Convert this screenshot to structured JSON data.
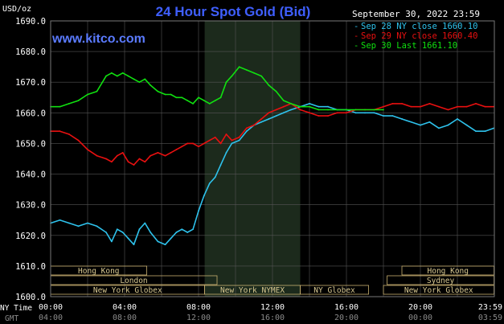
{
  "header": {
    "unit_label": "USD/oz",
    "title": "24 Hour Spot Gold (Bid)",
    "date": "September 30, 2022 23:59",
    "watermark": "www.kitco.com"
  },
  "colors": {
    "background": "#000000",
    "grid": "#555555",
    "title": "#3f5fff",
    "watermark": "#5b7bff",
    "sep28": "#2ec2ec",
    "sep29": "#e81010",
    "sep30": "#10e010",
    "session_box": "#c8b070",
    "session_text": "#d8c890",
    "axis_text": "#ffffff",
    "gmt_text": "#8a8a8a",
    "ny_band": "#1c2a1c"
  },
  "sessions": {
    "row1": [
      "Hong Kong",
      "Hong Kong"
    ],
    "row2": [
      "London",
      "Sydney"
    ],
    "row3": [
      "New York Globex",
      "New York NYMEX",
      "NY Globex",
      "New York Globex"
    ]
  },
  "footer": {
    "ny_label": "NY Time",
    "gmt_label": "GMT"
  },
  "chart_data": {
    "type": "line",
    "title": "24 Hour Spot Gold (Bid)",
    "ylabel": "USD/oz",
    "ylim": [
      1600,
      1690
    ],
    "yticks": [
      "1600.0",
      "1610.0",
      "1620.0",
      "1630.0",
      "1640.0",
      "1650.0",
      "1660.0",
      "1670.0",
      "1680.0",
      "1690.0"
    ],
    "xlim": [
      0,
      24
    ],
    "xticks_ny": [
      "00:00",
      "04:00",
      "08:00",
      "12:00",
      "16:00",
      "20:00",
      "23:59"
    ],
    "xticks_gmt": [
      "04:00",
      "08:00",
      "12:00",
      "16:00",
      "20:00",
      "00:00",
      "03:59"
    ],
    "grid": true,
    "legend_position": "top-right",
    "series": [
      {
        "name": "Sep 28 NY close 1660.10",
        "key": "sep28",
        "x": [
          0,
          0.5,
          1,
          1.5,
          2,
          2.5,
          3,
          3.3,
          3.6,
          3.9,
          4.2,
          4.5,
          4.8,
          5.1,
          5.4,
          5.8,
          6.2,
          6.5,
          6.8,
          7.1,
          7.4,
          7.7,
          8.0,
          8.3,
          8.6,
          8.9,
          9.2,
          9.5,
          9.8,
          10.2,
          10.6,
          11.0,
          11.4,
          11.8,
          12.2,
          12.6,
          13.0,
          13.5,
          14.0,
          14.5,
          15.0,
          15.5,
          16.0,
          16.5,
          17.0,
          17.5,
          18.0,
          18.5,
          19.0,
          19.5,
          20.0,
          20.5,
          21.0,
          21.5,
          22.0,
          22.5,
          23.0,
          23.5,
          23.98
        ],
        "y": [
          1624,
          1625,
          1624,
          1623,
          1624,
          1623,
          1621,
          1618,
          1622,
          1621,
          1619,
          1617,
          1622,
          1624,
          1621,
          1618,
          1617,
          1619,
          1621,
          1622,
          1621,
          1622,
          1628,
          1633,
          1637,
          1639,
          1643,
          1647,
          1650,
          1651,
          1654,
          1656,
          1657,
          1658,
          1659,
          1660,
          1661,
          1662,
          1663,
          1662,
          1662,
          1661,
          1661,
          1660,
          1660,
          1660,
          1659,
          1659,
          1658,
          1657,
          1656,
          1657,
          1655,
          1656,
          1658,
          1656,
          1654,
          1654,
          1655
        ]
      },
      {
        "name": "Sep 29 NY close 1660.40",
        "key": "sep29",
        "x": [
          0,
          0.5,
          1,
          1.5,
          2,
          2.5,
          3,
          3.3,
          3.6,
          3.9,
          4.2,
          4.5,
          4.8,
          5.1,
          5.4,
          5.8,
          6.2,
          6.5,
          6.8,
          7.1,
          7.4,
          7.7,
          8.0,
          8.3,
          8.6,
          8.9,
          9.2,
          9.5,
          9.8,
          10.2,
          10.6,
          11.0,
          11.4,
          11.8,
          12.2,
          12.6,
          13.0,
          13.5,
          14.0,
          14.5,
          15.0,
          15.5,
          16.0,
          16.5,
          17.0,
          17.5,
          18.0,
          18.5,
          19.0,
          19.5,
          20.0,
          20.5,
          21.0,
          21.5,
          22.0,
          22.5,
          23.0,
          23.5,
          23.98
        ],
        "y": [
          1654,
          1654,
          1653,
          1651,
          1648,
          1646,
          1645,
          1644,
          1646,
          1647,
          1644,
          1643,
          1645,
          1644,
          1646,
          1647,
          1646,
          1647,
          1648,
          1649,
          1650,
          1650,
          1649,
          1650,
          1651,
          1652,
          1650,
          1653,
          1651,
          1652,
          1655,
          1656,
          1658,
          1660,
          1661,
          1662,
          1663,
          1661,
          1660,
          1659,
          1659,
          1660,
          1660,
          1661,
          1661,
          1661,
          1662,
          1663,
          1663,
          1662,
          1662,
          1663,
          1662,
          1661,
          1662,
          1662,
          1663,
          1662,
          1662
        ]
      },
      {
        "name": "Sep 30 Last 1661.10",
        "key": "sep30",
        "x": [
          0,
          0.5,
          1,
          1.5,
          2,
          2.5,
          3,
          3.3,
          3.6,
          3.9,
          4.2,
          4.5,
          4.8,
          5.1,
          5.4,
          5.8,
          6.2,
          6.5,
          6.8,
          7.1,
          7.4,
          7.7,
          8.0,
          8.3,
          8.6,
          8.9,
          9.2,
          9.5,
          9.8,
          10.2,
          10.6,
          11.0,
          11.4,
          11.8,
          12.2,
          12.6,
          13.0,
          13.5,
          14.0,
          14.5,
          15.0,
          15.5,
          16.0,
          16.5,
          17.0,
          17.5,
          18.0
        ],
        "y": [
          1662,
          1662,
          1663,
          1664,
          1666,
          1667,
          1672,
          1673,
          1672,
          1673,
          1672,
          1671,
          1670,
          1671,
          1669,
          1667,
          1666,
          1666,
          1665,
          1665,
          1664,
          1663,
          1665,
          1664,
          1663,
          1664,
          1665,
          1670,
          1672,
          1675,
          1674,
          1673,
          1672,
          1669,
          1667,
          1664,
          1663,
          1662,
          1662,
          1661,
          1661,
          1661,
          1661,
          1661,
          1661,
          1661,
          1661
        ]
      }
    ]
  }
}
